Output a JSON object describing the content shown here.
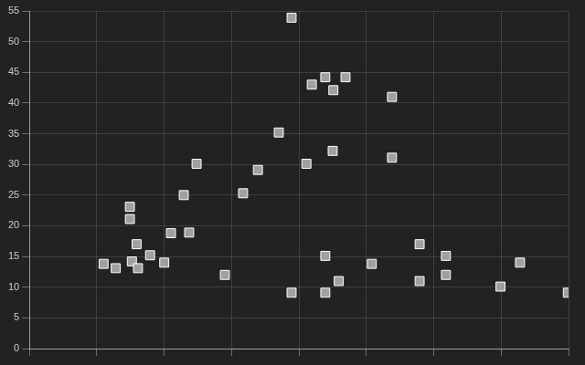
{
  "chart_data": {
    "type": "scatter",
    "x": [
      3.89,
      4.39,
      4.19,
      4.51,
      4.69,
      5.38,
      3.7,
      4.5,
      4.11,
      5.38,
      3.39,
      2.48,
      2.29,
      3.17,
      1.49,
      1.49,
      2.1,
      2.37,
      1.59,
      1.79,
      1.1,
      1.28,
      1.52,
      1.61,
      2.0,
      2.9,
      3.89,
      4.39,
      4.39,
      4.59,
      5.08,
      5.79,
      5.79,
      6.18,
      6.18,
      6.99,
      7.28,
      7.99
    ],
    "values": [
      53.9,
      44.2,
      43.0,
      42.1,
      44.2,
      41.0,
      35.2,
      32.2,
      30.1,
      31.1,
      29.1,
      30.1,
      25.0,
      25.3,
      23.1,
      21.1,
      18.8,
      18.9,
      17.0,
      15.2,
      13.8,
      13.1,
      14.2,
      13.1,
      14.0,
      12.0,
      9.1,
      15.1,
      9.1,
      11.0,
      13.8,
      17.0,
      11.0,
      15.1,
      12.0,
      10.1,
      14.0,
      9.1
    ],
    "color": "#a0a0a0",
    "marker": "rect",
    "xlim": [
      0,
      8
    ],
    "xticks": [
      0,
      1,
      2,
      3,
      4,
      5,
      6,
      7,
      8
    ],
    "ylim": [
      0,
      55
    ],
    "yticks": [
      0,
      5,
      10,
      15,
      20,
      25,
      30,
      35,
      40,
      45,
      50,
      55
    ],
    "grid": true,
    "tick_labels": "y"
  }
}
